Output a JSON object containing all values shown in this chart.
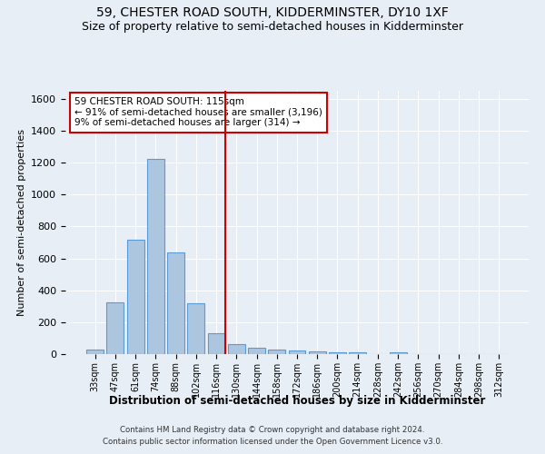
{
  "title": "59, CHESTER ROAD SOUTH, KIDDERMINSTER, DY10 1XF",
  "subtitle": "Size of property relative to semi-detached houses in Kidderminster",
  "xlabel": "Distribution of semi-detached houses by size in Kidderminster",
  "ylabel": "Number of semi-detached properties",
  "footnote1": "Contains HM Land Registry data © Crown copyright and database right 2024.",
  "footnote2": "Contains public sector information licensed under the Open Government Licence v3.0.",
  "bar_labels": [
    "33sqm",
    "47sqm",
    "61sqm",
    "74sqm",
    "88sqm",
    "102sqm",
    "116sqm",
    "130sqm",
    "144sqm",
    "158sqm",
    "172sqm",
    "186sqm",
    "200sqm",
    "214sqm",
    "228sqm",
    "242sqm",
    "256sqm",
    "270sqm",
    "284sqm",
    "298sqm",
    "312sqm"
  ],
  "bar_values": [
    27,
    327,
    718,
    1224,
    635,
    320,
    130,
    60,
    38,
    30,
    23,
    18,
    13,
    9,
    0,
    14,
    0,
    0,
    0,
    0,
    0
  ],
  "bar_color": "#adc6e0",
  "bar_edge_color": "#5b9bd5",
  "highlight_bin_index": 6,
  "annotation_title": "59 CHESTER ROAD SOUTH: 115sqm",
  "annotation_line1": "← 91% of semi-detached houses are smaller (3,196)",
  "annotation_line2": "9% of semi-detached houses are larger (314) →",
  "annotation_box_color": "#ffffff",
  "annotation_box_edge": "#cc0000",
  "ylim": [
    0,
    1650
  ],
  "yticks": [
    0,
    200,
    400,
    600,
    800,
    1000,
    1200,
    1400,
    1600
  ],
  "bg_color": "#e8eef5",
  "plot_bg_color": "#e8eef5",
  "title_fontsize": 10,
  "subtitle_fontsize": 9,
  "red_line_color": "#cc0000",
  "grid_color": "#ffffff"
}
